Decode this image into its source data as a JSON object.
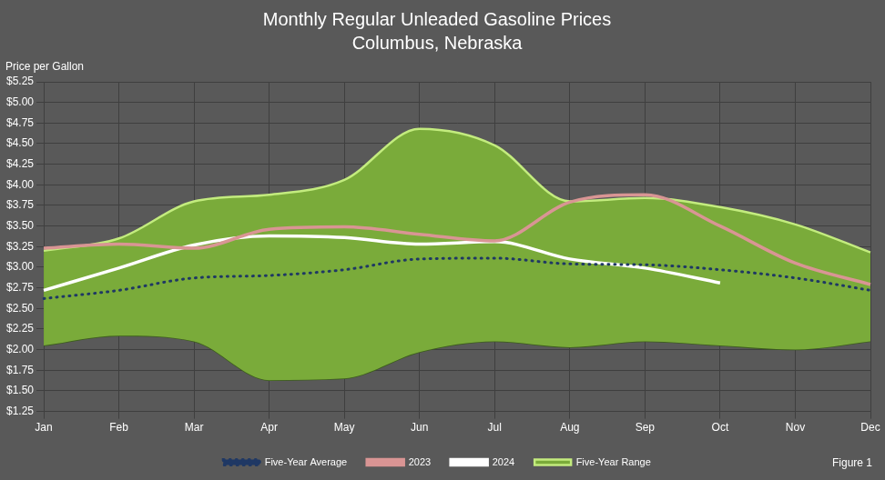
{
  "chart_data": {
    "type": "line",
    "title": "Monthly Regular Unleaded Gasoline Prices",
    "subtitle": "Columbus, Nebraska",
    "y_label": "Price per Gallon",
    "annotation": "Figure 1",
    "categories": [
      "Jan",
      "Feb",
      "Mar",
      "Apr",
      "May",
      "Jun",
      "Jul",
      "Aug",
      "Sep",
      "Oct",
      "Nov",
      "Dec"
    ],
    "series": [
      {
        "name": "Five-Year Range",
        "type": "range",
        "color": "#7aab3a",
        "low": [
          2.05,
          2.17,
          2.1,
          1.63,
          1.65,
          1.97,
          2.1,
          2.03,
          2.1,
          2.05,
          2.0,
          2.1
        ],
        "high": [
          3.2,
          3.35,
          3.8,
          3.88,
          4.06,
          4.68,
          4.48,
          3.8,
          3.84,
          3.73,
          3.52,
          3.18
        ]
      },
      {
        "name": "Five-Year Average",
        "type": "line",
        "color": "#1f3864",
        "line_style": "dotted",
        "marker": "none",
        "values": [
          2.62,
          2.72,
          2.87,
          2.9,
          2.97,
          3.1,
          3.11,
          3.04,
          3.03,
          2.97,
          2.87,
          2.72
        ]
      },
      {
        "name": "2023",
        "type": "line",
        "color": "#d99594",
        "line_style": "solid",
        "marker": "none",
        "values": [
          3.23,
          3.28,
          3.23,
          3.46,
          3.49,
          3.4,
          3.32,
          3.79,
          3.88,
          3.5,
          3.05,
          2.79
        ]
      },
      {
        "name": "2024",
        "type": "line",
        "color": "#ffffff",
        "line_style": "solid",
        "marker": "none",
        "values": [
          2.72,
          2.99,
          3.27,
          3.38,
          3.36,
          3.28,
          3.31,
          3.1,
          2.99,
          2.81,
          null,
          null
        ]
      }
    ],
    "ylim": [
      1.25,
      5.25
    ],
    "yticks": [
      {
        "value": 1.25,
        "label": "$1.25"
      },
      {
        "value": 1.5,
        "label": "$1.50"
      },
      {
        "value": 1.75,
        "label": "$1.75"
      },
      {
        "value": 2.0,
        "label": "$2.00"
      },
      {
        "value": 2.25,
        "label": "$2.25"
      },
      {
        "value": 2.5,
        "label": "$2.50"
      },
      {
        "value": 2.75,
        "label": "$2.75"
      },
      {
        "value": 3.0,
        "label": "$3.00"
      },
      {
        "value": 3.25,
        "label": "$3.25"
      },
      {
        "value": 3.5,
        "label": "$3.50"
      },
      {
        "value": 3.75,
        "label": "$3.75"
      },
      {
        "value": 4.0,
        "label": "$4.00"
      },
      {
        "value": 4.25,
        "label": "$4.25"
      },
      {
        "value": 4.5,
        "label": "$4.50"
      },
      {
        "value": 4.75,
        "label": "$4.75"
      },
      {
        "value": 5.0,
        "label": "$5.00"
      },
      {
        "value": 5.25,
        "label": "$5.25"
      }
    ],
    "grid": true,
    "legend": "bottom"
  }
}
